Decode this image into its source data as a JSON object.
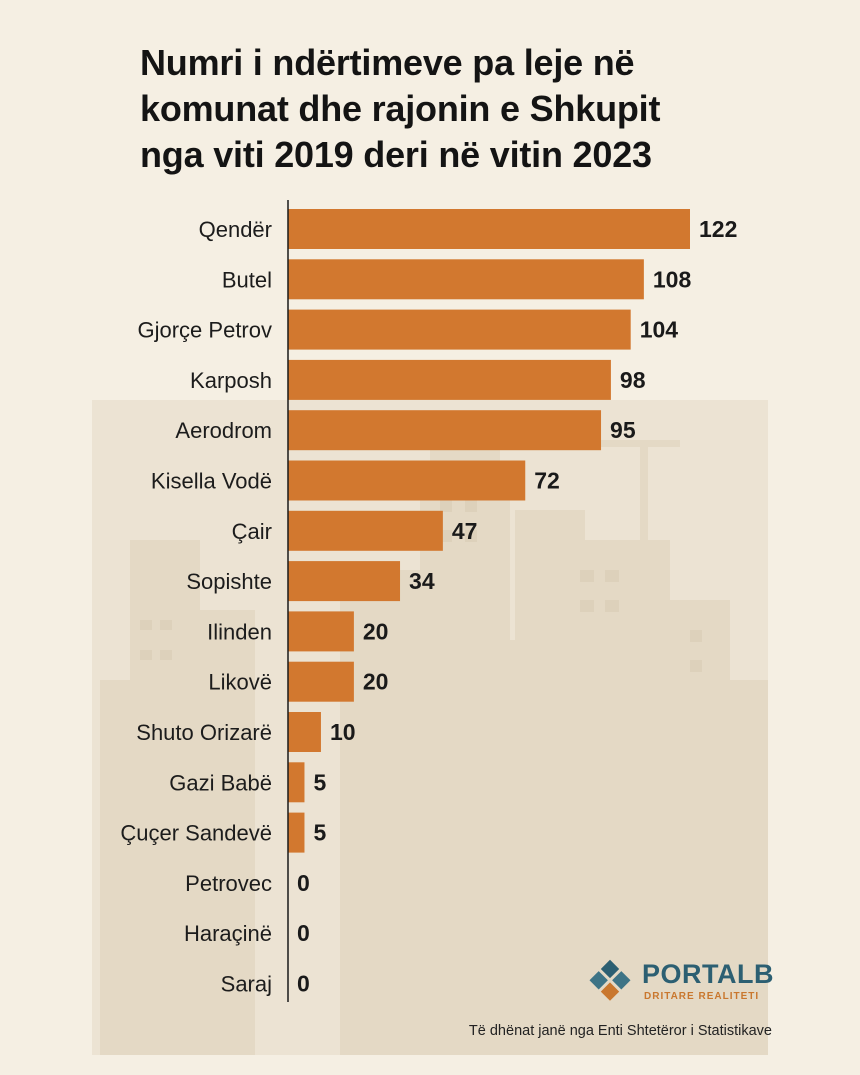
{
  "title_lines": [
    "Numri i ndërtimeve pa leje në",
    "komunat dhe rajonin e Shkupit",
    "nga viti 2019 deri në vitin 2023"
  ],
  "chart_data": {
    "type": "bar",
    "orientation": "horizontal",
    "title": "Numri i ndërtimeve pa leje në komunat dhe rajonin e Shkupit nga viti 2019 deri në vitin 2023",
    "categories": [
      "Qendër",
      "Butel",
      "Gjorçe Petrov",
      "Karposh",
      "Aerodrom",
      "Kisella Vodë",
      "Çair",
      "Sopishte",
      "Ilinden",
      "Likovë",
      "Shuto Orizarë",
      "Gazi Babë",
      "Çuçer Sandevë",
      "Petrovec",
      "Haraçinë",
      "Saraj"
    ],
    "values": [
      122,
      108,
      104,
      98,
      95,
      72,
      47,
      34,
      20,
      20,
      10,
      5,
      5,
      0,
      0,
      0
    ],
    "xlim": [
      0,
      122
    ],
    "bar_color": "#d2782f",
    "grid": false,
    "xlabel": "",
    "ylabel": ""
  },
  "logo": {
    "name": "PORTALB",
    "tagline": "DRITARE REALITETI",
    "colors": [
      "#2c5f72",
      "#c9772e"
    ]
  },
  "source": "Të dhënat janë nga Enti Shtetëror i Statistikave",
  "colors": {
    "background": "#f5efe3",
    "bar": "#d2782f",
    "text": "#141414"
  }
}
